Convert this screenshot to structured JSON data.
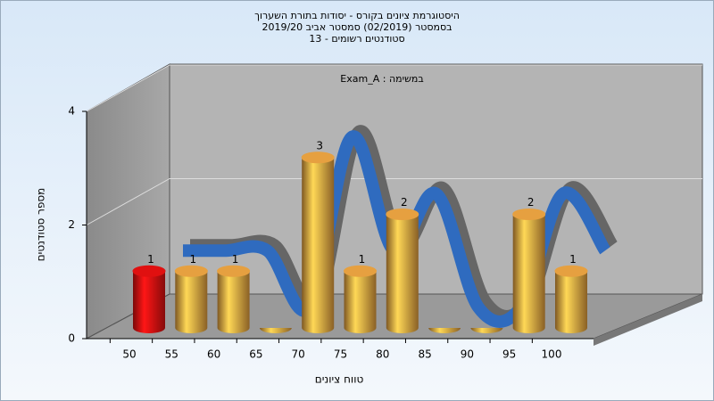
{
  "chart_data": {
    "type": "bar",
    "title": [
      "היסטוגרמת ציונים בקורס - יסודות בתורת השערוך",
      "בסמסטר  (02/2019)  סמסטר אביב 2019/20",
      "סטודנטים רשומים - 13"
    ],
    "annotation": "במשימה : Exam_A",
    "x_label": "טווח ציונים",
    "y_label": "מספר סטודנטים",
    "categories": [
      "50",
      "55",
      "60",
      "65",
      "70",
      "75",
      "80",
      "85",
      "90",
      "95",
      "100"
    ],
    "values": [
      1,
      1,
      1,
      0,
      3,
      1,
      2,
      0,
      0,
      2,
      1
    ],
    "colors": [
      "#e01010",
      "#e6a040",
      "#e6a040",
      "#e6a040",
      "#e6a040",
      "#e6a040",
      "#e6a040",
      "#e6a040",
      "#e6a040",
      "#e6a040",
      "#e6a040"
    ],
    "line_color": "#2f6bbf",
    "ylim": [
      0,
      4
    ],
    "yticks": [
      0,
      2,
      4
    ],
    "grid": true
  }
}
